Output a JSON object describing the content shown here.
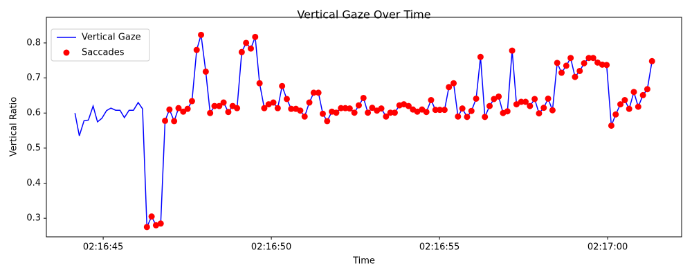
{
  "chart_data": {
    "type": "line",
    "title": "Vertical Gaze Over Time",
    "x_label": "Time",
    "y_label": "Vertical Ratio",
    "x": [
      "02:16:44.16",
      "02:16:44.29",
      "02:16:44.43",
      "02:16:44.56",
      "02:16:44.70",
      "02:16:44.83",
      "02:16:44.96",
      "02:16:45.10",
      "02:16:45.23",
      "02:16:45.37",
      "02:16:45.50",
      "02:16:45.63",
      "02:16:45.77",
      "02:16:45.90",
      "02:16:46.04",
      "02:16:46.17",
      "02:16:46.30",
      "02:16:46.44",
      "02:16:46.57",
      "02:16:46.71",
      "02:16:46.84",
      "02:16:46.97",
      "02:16:47.11",
      "02:16:47.24",
      "02:16:47.38",
      "02:16:47.51",
      "02:16:47.64",
      "02:16:47.78",
      "02:16:47.91",
      "02:16:48.05",
      "02:16:48.18",
      "02:16:48.31",
      "02:16:48.45",
      "02:16:48.58",
      "02:16:48.72",
      "02:16:48.85",
      "02:16:48.98",
      "02:16:49.12",
      "02:16:49.25",
      "02:16:49.39",
      "02:16:49.52",
      "02:16:49.65",
      "02:16:49.79",
      "02:16:49.92",
      "02:16:50.06",
      "02:16:50.19",
      "02:16:50.32",
      "02:16:50.46",
      "02:16:50.59",
      "02:16:50.73",
      "02:16:50.86",
      "02:16:50.99",
      "02:16:51.13",
      "02:16:51.26",
      "02:16:51.40",
      "02:16:51.53",
      "02:16:51.66",
      "02:16:51.80",
      "02:16:51.93",
      "02:16:52.07",
      "02:16:52.20",
      "02:16:52.33",
      "02:16:52.47",
      "02:16:52.60",
      "02:16:52.74",
      "02:16:52.87",
      "02:16:53.00",
      "02:16:53.14",
      "02:16:53.27",
      "02:16:53.41",
      "02:16:53.54",
      "02:16:53.67",
      "02:16:53.81",
      "02:16:53.94",
      "02:16:54.08",
      "02:16:54.21",
      "02:16:54.34",
      "02:16:54.48",
      "02:16:54.61",
      "02:16:54.75",
      "02:16:54.88",
      "02:16:55.01",
      "02:16:55.15",
      "02:16:55.28",
      "02:16:55.42",
      "02:16:55.55",
      "02:16:55.68",
      "02:16:55.82",
      "02:16:55.95",
      "02:16:56.09",
      "02:16:56.22",
      "02:16:56.35",
      "02:16:56.49",
      "02:16:56.62",
      "02:16:56.76",
      "02:16:56.89",
      "02:16:57.02",
      "02:16:57.16",
      "02:16:57.29",
      "02:16:57.43",
      "02:16:57.56",
      "02:16:57.69",
      "02:16:57.83",
      "02:16:57.96",
      "02:16:58.10",
      "02:16:58.23",
      "02:16:58.36",
      "02:16:58.50",
      "02:16:58.63",
      "02:16:58.77",
      "02:16:58.90",
      "02:16:59.03",
      "02:16:59.17",
      "02:16:59.30",
      "02:16:59.44",
      "02:16:59.57",
      "02:16:59.70",
      "02:16:59.84",
      "02:16:59.97",
      "02:17:00.11",
      "02:17:00.24",
      "02:17:00.38",
      "02:17:00.51",
      "02:17:00.64",
      "02:17:00.78",
      "02:17:00.91",
      "02:17:01.05",
      "02:17:01.18",
      "02:17:01.32"
    ],
    "series": [
      {
        "name": "Vertical Gaze",
        "type": "line",
        "color": "#0000ff",
        "values": [
          0.6,
          0.535,
          0.578,
          0.58,
          0.62,
          0.575,
          0.585,
          0.607,
          0.614,
          0.608,
          0.608,
          0.587,
          0.608,
          0.608,
          0.63,
          0.612,
          0.275,
          0.305,
          0.28,
          0.285,
          0.578,
          0.61,
          0.577,
          0.614,
          0.604,
          0.612,
          0.634,
          0.78,
          0.823,
          0.718,
          0.6,
          0.62,
          0.62,
          0.63,
          0.603,
          0.62,
          0.614,
          0.774,
          0.8,
          0.784,
          0.817,
          0.685,
          0.614,
          0.625,
          0.63,
          0.614,
          0.677,
          0.64,
          0.612,
          0.612,
          0.607,
          0.59,
          0.63,
          0.658,
          0.658,
          0.598,
          0.577,
          0.604,
          0.601,
          0.614,
          0.614,
          0.613,
          0.601,
          0.622,
          0.643,
          0.601,
          0.615,
          0.607,
          0.613,
          0.59,
          0.601,
          0.601,
          0.622,
          0.625,
          0.62,
          0.61,
          0.604,
          0.61,
          0.603,
          0.637,
          0.609,
          0.609,
          0.609,
          0.674,
          0.685,
          0.59,
          0.613,
          0.589,
          0.606,
          0.641,
          0.76,
          0.589,
          0.62,
          0.64,
          0.647,
          0.6,
          0.605,
          0.778,
          0.625,
          0.632,
          0.632,
          0.62,
          0.64,
          0.599,
          0.615,
          0.641,
          0.608,
          0.743,
          0.715,
          0.735,
          0.757,
          0.703,
          0.72,
          0.742,
          0.757,
          0.757,
          0.744,
          0.738,
          0.737,
          0.564,
          0.596,
          0.625,
          0.637,
          0.612,
          0.66,
          0.618,
          0.651,
          0.668,
          0.748
        ]
      },
      {
        "name": "Saccades",
        "type": "scatter",
        "color": "#ff0000",
        "values": [
          null,
          null,
          null,
          null,
          null,
          null,
          null,
          null,
          null,
          null,
          null,
          null,
          null,
          null,
          null,
          null,
          0.275,
          0.305,
          0.28,
          0.285,
          0.578,
          0.61,
          0.577,
          0.614,
          0.604,
          0.612,
          0.634,
          0.78,
          0.823,
          0.718,
          0.6,
          0.62,
          0.62,
          0.63,
          0.603,
          0.62,
          0.614,
          0.774,
          0.8,
          0.784,
          0.817,
          0.685,
          0.614,
          0.625,
          0.63,
          0.614,
          0.677,
          0.64,
          0.612,
          0.612,
          0.607,
          0.59,
          0.63,
          0.658,
          0.658,
          0.598,
          0.577,
          0.604,
          0.601,
          0.614,
          0.614,
          0.613,
          0.601,
          0.622,
          0.643,
          0.601,
          0.615,
          0.607,
          0.613,
          0.59,
          0.601,
          0.601,
          0.622,
          0.625,
          0.62,
          0.61,
          0.604,
          0.61,
          0.603,
          0.637,
          0.609,
          0.609,
          0.609,
          0.674,
          0.685,
          0.59,
          0.613,
          0.589,
          0.606,
          0.641,
          0.76,
          0.589,
          0.62,
          0.64,
          0.647,
          0.6,
          0.605,
          0.778,
          0.625,
          0.632,
          0.632,
          0.62,
          0.64,
          0.599,
          0.615,
          0.641,
          0.608,
          0.743,
          0.715,
          0.735,
          0.757,
          0.703,
          0.72,
          0.742,
          0.757,
          0.757,
          0.744,
          0.738,
          0.737,
          0.564,
          0.596,
          0.625,
          0.637,
          0.612,
          0.66,
          0.618,
          0.651,
          0.668,
          0.748
        ]
      }
    ],
    "xlim": [
      "02:16:43.31",
      "02:17:02.20"
    ],
    "xticks": [
      "02:16:45",
      "02:16:50",
      "02:16:55",
      "02:17:00"
    ],
    "ylim": [
      0.247,
      0.873
    ],
    "yticks": [
      0.3,
      0.4,
      0.5,
      0.6,
      0.7,
      0.8
    ],
    "legend": "upper left"
  }
}
